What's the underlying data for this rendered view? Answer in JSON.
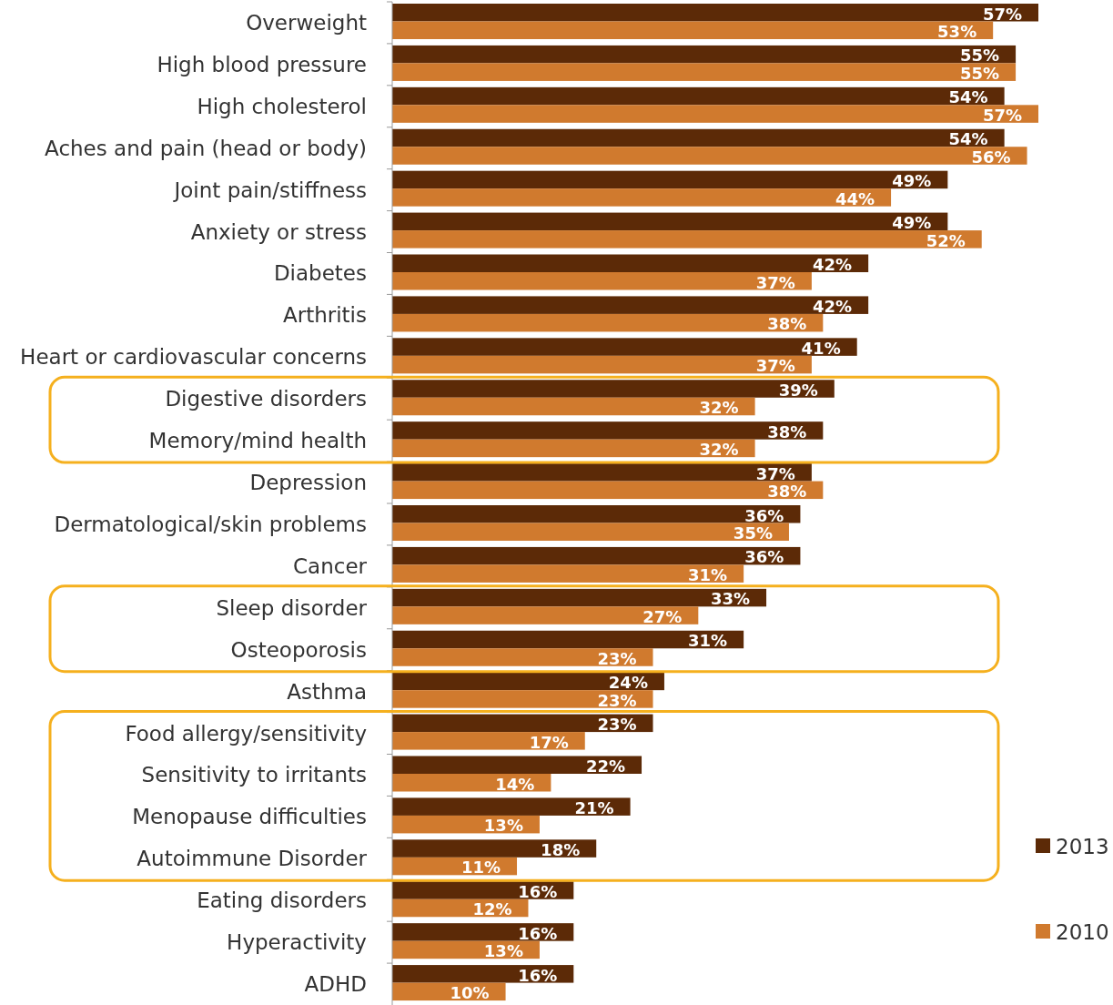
{
  "chart_data": {
    "type": "bar",
    "orientation": "horizontal",
    "legend": "right",
    "categories": [
      "Overweight",
      "High blood pressure",
      "High cholesterol",
      "Aches and pain (head or body)",
      "Joint pain/stiffness",
      "Anxiety or stress",
      "Diabetes",
      "Arthritis",
      "Heart or cardiovascular concerns",
      "Digestive disorders",
      "Memory/mind health",
      "Depression",
      "Dermatological/skin problems",
      "Cancer",
      "Sleep disorder",
      "Osteoporosis",
      "Asthma",
      "Food allergy/sensitivity",
      "Sensitivity to irritants",
      "Menopause difficulties",
      "Autoimmune Disorder",
      "Eating disorders",
      "Hyperactivity",
      "ADHD"
    ],
    "series": [
      {
        "name": "2013",
        "color": "#5c2a07",
        "values": [
          57,
          55,
          54,
          54,
          49,
          49,
          42,
          42,
          41,
          39,
          38,
          37,
          36,
          36,
          33,
          31,
          24,
          23,
          22,
          21,
          18,
          16,
          16,
          16
        ],
        "value_labels": [
          "57%",
          "55%",
          "54%",
          "54%",
          "49%",
          "49%",
          "42%",
          "42%",
          "41%",
          "39%",
          "38%",
          "37%",
          "36%",
          "36%",
          "33%",
          "31%",
          "24%",
          "23%",
          "22%",
          "21%",
          "18%",
          "16%",
          "16%",
          "16%"
        ]
      },
      {
        "name": "2010",
        "color": "#d07a2e",
        "values": [
          53,
          55,
          57,
          56,
          44,
          52,
          37,
          38,
          37,
          32,
          32,
          38,
          35,
          31,
          27,
          23,
          23,
          17,
          14,
          13,
          11,
          12,
          13,
          10
        ],
        "value_labels": [
          "53%",
          "55%",
          "57%",
          "56%",
          "44%",
          "52%",
          "37%",
          "38%",
          "37%",
          "32%",
          "32%",
          "38%",
          "35%",
          "31%",
          "27%",
          "23%",
          "23%",
          "17%",
          "14%",
          "13%",
          "11%",
          "12%",
          "13%",
          "10%"
        ]
      }
    ]
  }
}
